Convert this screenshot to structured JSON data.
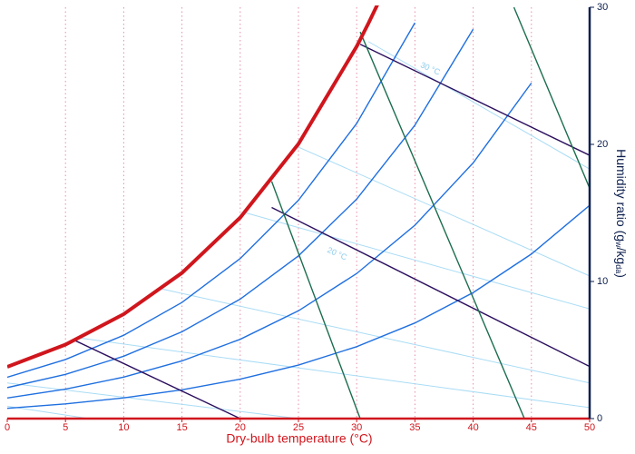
{
  "chart_data": {
    "type": "line",
    "xlabel": "Dry-bulb temperature (°C)",
    "ylabel": [
      "Humidity ratio (g",
      "w",
      "/kg",
      "da",
      ")"
    ],
    "xlim": [
      0,
      50
    ],
    "xticks": [
      0,
      5,
      10,
      15,
      20,
      25,
      30,
      35,
      40,
      45,
      50
    ],
    "y2lim": [
      0,
      30
    ],
    "y2ticks": [
      0,
      10,
      20,
      30
    ],
    "grid": true,
    "series": [
      {
        "axis": "y2",
        "color": "#a9dcf5",
        "x": [
          0,
          7
        ],
        "values": [
          0.9,
          0
        ]
      },
      {
        "axis": "y2",
        "color": "#a9dcf5",
        "x": [
          0,
          25
        ],
        "values": [
          2.6,
          0
        ]
      },
      {
        "axis": "y2",
        "color": "#a9dcf5",
        "x": [
          6,
          50
        ],
        "values": [
          5.9,
          0.8
        ]
      },
      {
        "axis": "y2",
        "color": "#a9dcf5",
        "x": [
          13,
          50
        ],
        "values": [
          9.5,
          2.6
        ]
      },
      {
        "axis": "y2",
        "color": "#a9dcf5",
        "x": [
          20.5,
          50
        ],
        "values": [
          15.0,
          8.0
        ]
      },
      {
        "axis": "y2",
        "color": "#a9dcf5",
        "x": [
          25,
          50
        ],
        "values": [
          19.8,
          10.4
        ]
      },
      {
        "axis": "y2",
        "color": "#a9dcf5",
        "x": [
          31,
          50
        ],
        "values": [
          27.5,
          18.2
        ]
      },
      {
        "axis": "y2",
        "color": "#1f6fe0",
        "x": [
          0,
          5,
          10,
          15,
          20,
          25,
          30,
          35,
          40,
          45,
          50
        ],
        "values": [
          3.015,
          4.31,
          6.08,
          8.472,
          11.675,
          15.925,
          21.527,
          28.867,
          null,
          null,
          null
        ]
      },
      {
        "axis": "y2",
        "color": "#1f6fe0",
        "x": [
          0,
          5,
          10,
          15,
          20,
          25,
          30,
          35,
          40,
          45,
          50
        ],
        "values": [
          2.258,
          3.227,
          4.549,
          6.333,
          8.716,
          11.868,
          16.007,
          21.402,
          28.404,
          null,
          null
        ]
      },
      {
        "axis": "y2",
        "color": "#1f6fe0",
        "x": [
          0,
          5,
          10,
          15,
          20,
          25,
          30,
          35,
          40,
          45,
          50
        ],
        "values": [
          1.504,
          2.147,
          3.025,
          4.207,
          5.783,
          7.862,
          10.581,
          14.106,
          18.651,
          24.477,
          null
        ]
      },
      {
        "axis": "y2",
        "color": "#1f6fe0",
        "x": [
          0,
          5,
          10,
          15,
          20,
          25,
          30,
          35,
          40,
          45,
          50
        ],
        "values": [
          0.751,
          1.072,
          1.509,
          2.097,
          2.878,
          3.906,
          5.246,
          6.974,
          9.188,
          12.002,
          15.554
        ]
      },
      {
        "axis": "y2",
        "color": "#2b0f5e",
        "x": [
          5.8,
          20
        ],
        "values": [
          5.7,
          0
        ]
      },
      {
        "axis": "y2",
        "color": "#2b0f5e",
        "x": [
          22.7,
          50
        ],
        "values": [
          15.4,
          3.8
        ]
      },
      {
        "axis": "y2",
        "color": "#2b0f5e",
        "x": [
          30.3,
          50
        ],
        "values": [
          27.3,
          19.2
        ]
      },
      {
        "axis": "y2",
        "color": "#1c6e4e",
        "x": [
          22.7,
          30.3
        ],
        "values": [
          17.3,
          0
        ]
      },
      {
        "axis": "y2",
        "color": "#1c6e4e",
        "x": [
          30.3,
          44.4
        ],
        "values": [
          28.2,
          0
        ]
      },
      {
        "axis": "y2",
        "color": "#1c6e4e",
        "x": [
          43.5,
          50
        ],
        "values": [
          30,
          16.8
        ]
      },
      {
        "axis": "y2",
        "color": "#d0161d",
        "width": 4,
        "x": [
          0,
          5,
          10,
          15,
          20,
          25,
          30,
          31,
          32
        ],
        "values": [
          3.773,
          5.397,
          7.618,
          10.627,
          14.663,
          20.034,
          27.144,
          28.818,
          30.58
        ]
      }
    ],
    "annotations": [
      {
        "text": "20 °C",
        "x": 27.5,
        "y": 12.3,
        "color": "#8ccbec"
      },
      {
        "text": "30 °C",
        "x": 35.5,
        "y": 25.8,
        "color": "#8ccbec"
      }
    ]
  }
}
